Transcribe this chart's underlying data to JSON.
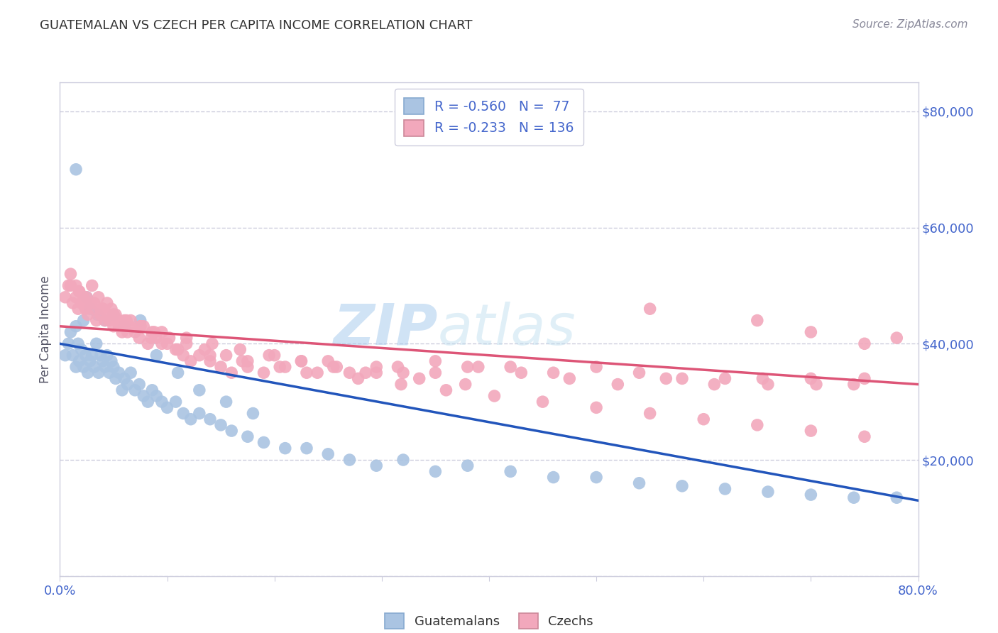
{
  "title": "GUATEMALAN VS CZECH PER CAPITA INCOME CORRELATION CHART",
  "source": "Source: ZipAtlas.com",
  "ylabel": "Per Capita Income",
  "watermark_zip": "ZIP",
  "watermark_atlas": "atlas",
  "blue_color": "#aac4e2",
  "pink_color": "#f2a8bc",
  "blue_line_color": "#2255bb",
  "pink_line_color": "#dd5577",
  "axis_color": "#ccccdd",
  "label_color": "#4466cc",
  "title_color": "#333333",
  "source_color": "#888899",
  "background_color": "#ffffff",
  "blue_line_x0": 0.0,
  "blue_line_y0": 40000,
  "blue_line_x1": 0.8,
  "blue_line_y1": 13000,
  "pink_line_x0": 0.0,
  "pink_line_y0": 43000,
  "pink_line_x1": 0.8,
  "pink_line_y1": 33000,
  "guatemalan_x": [
    0.005,
    0.008,
    0.01,
    0.012,
    0.015,
    0.017,
    0.018,
    0.02,
    0.022,
    0.024,
    0.026,
    0.028,
    0.03,
    0.032,
    0.034,
    0.036,
    0.038,
    0.04,
    0.042,
    0.044,
    0.046,
    0.048,
    0.05,
    0.052,
    0.055,
    0.058,
    0.06,
    0.063,
    0.066,
    0.07,
    0.074,
    0.078,
    0.082,
    0.086,
    0.09,
    0.095,
    0.1,
    0.108,
    0.115,
    0.122,
    0.13,
    0.14,
    0.15,
    0.16,
    0.175,
    0.19,
    0.21,
    0.23,
    0.25,
    0.27,
    0.295,
    0.32,
    0.35,
    0.38,
    0.42,
    0.46,
    0.5,
    0.54,
    0.58,
    0.62,
    0.66,
    0.7,
    0.74,
    0.78,
    0.015,
    0.022,
    0.028,
    0.035,
    0.042,
    0.05,
    0.06,
    0.075,
    0.09,
    0.11,
    0.13,
    0.155,
    0.18,
    0.015,
    0.025
  ],
  "guatemalan_y": [
    38000,
    40000,
    42000,
    38000,
    36000,
    40000,
    37000,
    39000,
    36000,
    38000,
    35000,
    37000,
    38000,
    36000,
    40000,
    35000,
    38000,
    37000,
    36000,
    38000,
    35000,
    37000,
    36000,
    34000,
    35000,
    32000,
    34000,
    33000,
    35000,
    32000,
    33000,
    31000,
    30000,
    32000,
    31000,
    30000,
    29000,
    30000,
    28000,
    27000,
    28000,
    27000,
    26000,
    25000,
    24000,
    23000,
    22000,
    22000,
    21000,
    20000,
    19000,
    20000,
    18000,
    19000,
    18000,
    17000,
    17000,
    16000,
    15500,
    15000,
    14500,
    14000,
    13500,
    13500,
    43000,
    44000,
    46000,
    45000,
    44000,
    45000,
    43000,
    44000,
    38000,
    35000,
    32000,
    30000,
    28000,
    70000,
    48000
  ],
  "czech_x": [
    0.005,
    0.008,
    0.01,
    0.012,
    0.015,
    0.017,
    0.018,
    0.02,
    0.022,
    0.024,
    0.026,
    0.028,
    0.03,
    0.032,
    0.034,
    0.036,
    0.038,
    0.04,
    0.042,
    0.044,
    0.046,
    0.048,
    0.05,
    0.052,
    0.055,
    0.058,
    0.06,
    0.063,
    0.066,
    0.07,
    0.074,
    0.078,
    0.082,
    0.086,
    0.09,
    0.095,
    0.1,
    0.108,
    0.115,
    0.122,
    0.13,
    0.14,
    0.15,
    0.16,
    0.175,
    0.19,
    0.21,
    0.23,
    0.25,
    0.27,
    0.295,
    0.32,
    0.35,
    0.38,
    0.42,
    0.46,
    0.5,
    0.54,
    0.58,
    0.62,
    0.66,
    0.7,
    0.74,
    0.78,
    0.01,
    0.018,
    0.025,
    0.032,
    0.04,
    0.05,
    0.062,
    0.075,
    0.088,
    0.102,
    0.118,
    0.135,
    0.155,
    0.175,
    0.2,
    0.225,
    0.255,
    0.285,
    0.315,
    0.35,
    0.39,
    0.43,
    0.475,
    0.52,
    0.565,
    0.61,
    0.655,
    0.705,
    0.75,
    0.022,
    0.038,
    0.055,
    0.075,
    0.095,
    0.118,
    0.142,
    0.168,
    0.195,
    0.225,
    0.258,
    0.295,
    0.335,
    0.378,
    0.015,
    0.028,
    0.045,
    0.065,
    0.085,
    0.11,
    0.14,
    0.17,
    0.205,
    0.24,
    0.278,
    0.318,
    0.36,
    0.405,
    0.45,
    0.5,
    0.55,
    0.6,
    0.65,
    0.7,
    0.75,
    0.55,
    0.65,
    0.7,
    0.75
  ],
  "czech_y": [
    48000,
    50000,
    52000,
    47000,
    50000,
    46000,
    49000,
    47000,
    48000,
    46000,
    45000,
    47000,
    50000,
    46000,
    44000,
    48000,
    45000,
    46000,
    44000,
    47000,
    44000,
    46000,
    43000,
    45000,
    43000,
    42000,
    44000,
    42000,
    44000,
    42000,
    41000,
    43000,
    40000,
    42000,
    41000,
    40000,
    40000,
    39000,
    38000,
    37000,
    38000,
    37000,
    36000,
    35000,
    36000,
    35000,
    36000,
    35000,
    37000,
    35000,
    36000,
    35000,
    37000,
    36000,
    36000,
    35000,
    36000,
    35000,
    34000,
    34000,
    33000,
    34000,
    33000,
    41000,
    50000,
    49000,
    48000,
    47000,
    46000,
    45000,
    44000,
    43000,
    42000,
    41000,
    40000,
    39000,
    38000,
    37000,
    38000,
    37000,
    36000,
    35000,
    36000,
    35000,
    36000,
    35000,
    34000,
    33000,
    34000,
    33000,
    34000,
    33000,
    34000,
    47000,
    46000,
    44000,
    43000,
    42000,
    41000,
    40000,
    39000,
    38000,
    37000,
    36000,
    35000,
    34000,
    33000,
    48000,
    47000,
    45000,
    43000,
    41000,
    39000,
    38000,
    37000,
    36000,
    35000,
    34000,
    33000,
    32000,
    31000,
    30000,
    29000,
    28000,
    27000,
    26000,
    25000,
    24000,
    46000,
    44000,
    42000,
    40000
  ],
  "yticks": [
    0,
    20000,
    40000,
    60000,
    80000
  ],
  "ytick_labels": [
    "",
    "$20,000",
    "$40,000",
    "$60,000",
    "$80,000"
  ],
  "xtick_positions": [
    0.0,
    0.1,
    0.2,
    0.3,
    0.4,
    0.5,
    0.6,
    0.7,
    0.8
  ],
  "ymax": 85000
}
